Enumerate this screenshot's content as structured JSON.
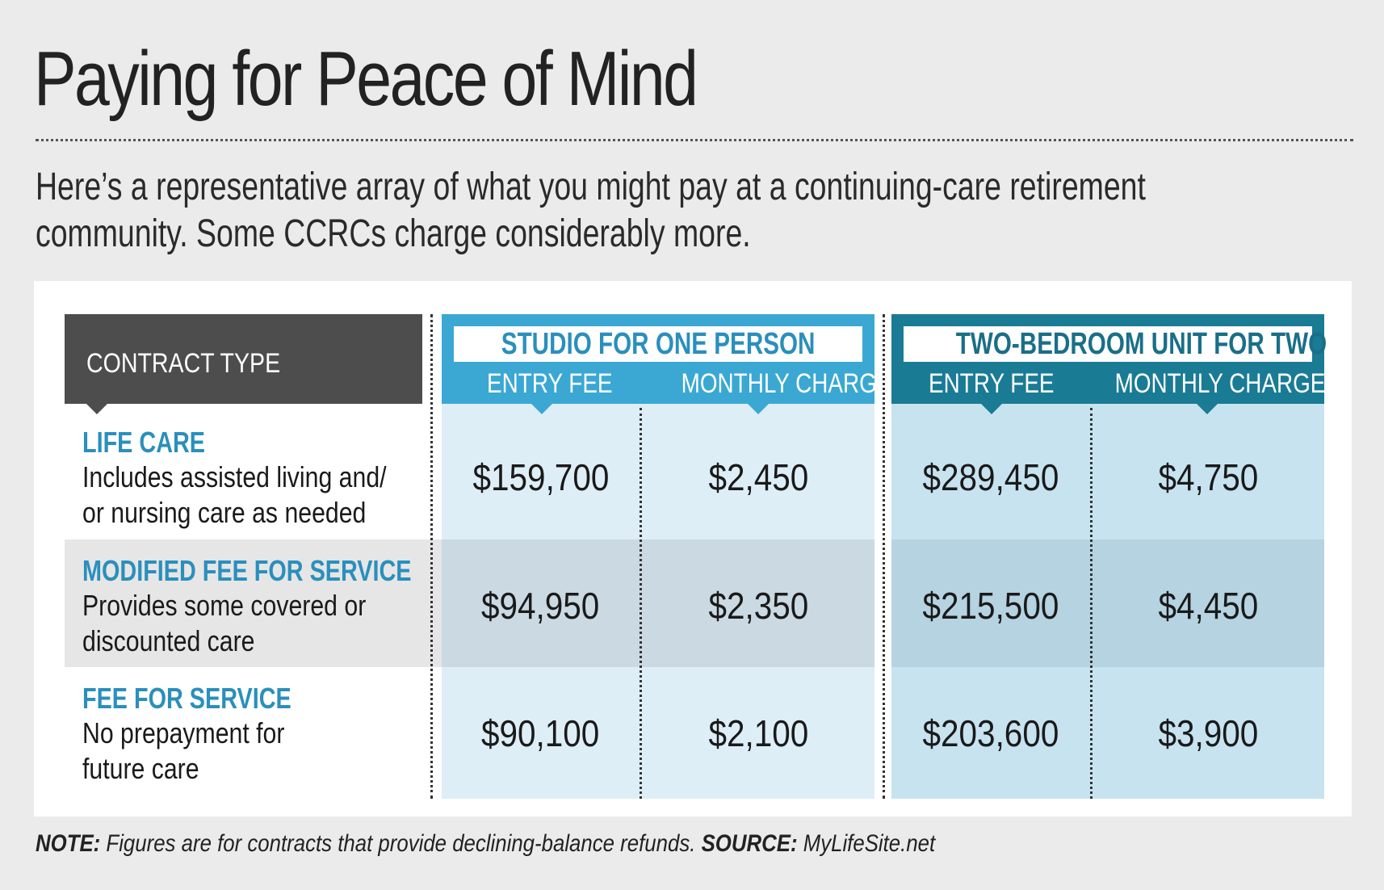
{
  "title": "Paying for Peace of Mind",
  "subtitle": "Here’s a representative array of what you might pay at a continuing-care retirement community. Some CCRCs charge considerably more.",
  "colors": {
    "background": "#ebebeb",
    "contract_header": "#4d4d4d",
    "studio_header": "#3aa8d3",
    "two_bedroom_header": "#1a7b95",
    "studio_light": "#deeef7",
    "studio_shaded": "#cad9e2",
    "two_bedroom_light": "#c7e3f0",
    "two_bedroom_shaded": "#b5d3e1",
    "row_shaded": "#e6e6e6",
    "label_accent": "#2a8fbd"
  },
  "chart_data": {
    "type": "table",
    "row_header_title": "CONTRACT TYPE",
    "column_groups": [
      {
        "name": "STUDIO FOR ONE PERSON",
        "columns": [
          "ENTRY FEE",
          "MONTHLY CHARGE"
        ]
      },
      {
        "name": "TWO-BEDROOM UNIT FOR TWO",
        "columns": [
          "ENTRY FEE",
          "MONTHLY CHARGE"
        ]
      }
    ],
    "rows": [
      {
        "name": "LIFE CARE",
        "description_lines": [
          "Includes assisted living and/",
          "or nursing care as needed"
        ],
        "values": [
          "$159,700",
          "$2,450",
          "$289,450",
          "$4,750"
        ]
      },
      {
        "name": "MODIFIED FEE FOR SERVICE",
        "description_lines": [
          "Provides some covered or",
          "discounted care"
        ],
        "values": [
          "$94,950",
          "$2,350",
          "$215,500",
          "$4,450"
        ]
      },
      {
        "name": "FEE FOR SERVICE",
        "description_lines": [
          "No prepayment for",
          "future care"
        ],
        "values": [
          "$90,100",
          "$2,100",
          "$203,600",
          "$3,900"
        ]
      }
    ]
  },
  "footer": {
    "note_label": "NOTE:",
    "note_text": " Figures are for contracts that provide declining-balance refunds. ",
    "source_label": "SOURCE:",
    "source_text": " MyLifeSite.net"
  }
}
